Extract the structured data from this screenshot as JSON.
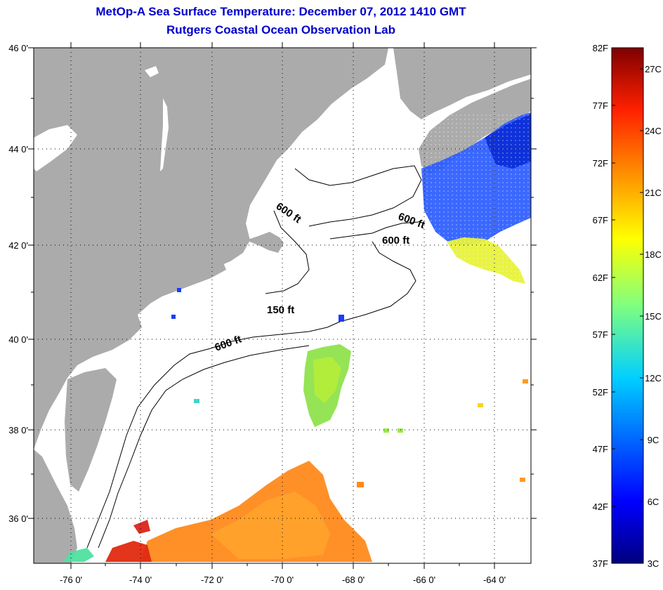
{
  "title": "MetOp-A Sea Surface Temperature:  December 07, 2012 1410 GMT",
  "subtitle": "Rutgers Coastal Ocean Observation Lab",
  "map": {
    "lat_labels": [
      "46 0'",
      "44 0'",
      "42 0'",
      "40 0'",
      "38 0'",
      "36 0'"
    ],
    "lon_labels": [
      "-76 0'",
      "-74 0'",
      "-72 0'",
      "-70 0'",
      "-68 0'",
      "-66 0'",
      "-64 0'"
    ],
    "contour_labels": [
      "600 ft",
      "600 ft",
      "600 ft",
      "150 ft",
      "600 ft"
    ],
    "colors": {
      "land": "#ababab",
      "ocean": "#ffffff"
    }
  },
  "colorbar": {
    "f_labels": [
      "82F",
      "77F",
      "72F",
      "67F",
      "62F",
      "57F",
      "52F",
      "47F",
      "42F",
      "37F"
    ],
    "c_labels": [
      "27C",
      "24C",
      "21C",
      "18C",
      "15C",
      "12C",
      "9C",
      "6C",
      "3C"
    ],
    "colormap": "jet"
  }
}
